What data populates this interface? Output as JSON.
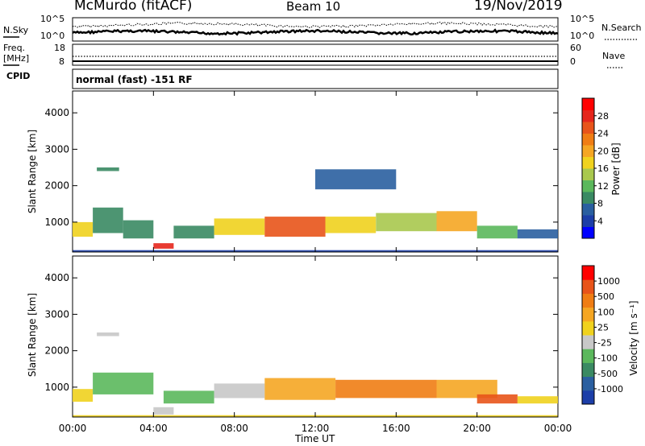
{
  "header": {
    "station": "McMurdo (fitACF)",
    "beam": "Beam 10",
    "date": "19/Nov/2019"
  },
  "noise_panel": {
    "left_label": "N.Sky",
    "right_label": "N.Search",
    "left_ticks": [
      "10^5",
      "10^0"
    ],
    "right_ticks": [
      "10^5",
      "10^0"
    ]
  },
  "freq_panel": {
    "left_label_line1": "Freq.",
    "left_label_line2": "[MHz]",
    "right_label": "Nave",
    "left_ticks": [
      "18",
      "8"
    ],
    "right_ticks": [
      "60",
      "0"
    ]
  },
  "cpid": {
    "label": "CPID",
    "mode": "normal (fast) -151 RF"
  },
  "chart_data": [
    {
      "type": "heatmap",
      "panel": "power",
      "ylabel": "Slant Range [km]",
      "xlabel": "",
      "x_ticks": [
        "00:00",
        "04:00",
        "08:00",
        "12:00",
        "16:00",
        "20:00",
        "00:00"
      ],
      "y_ticks": [
        "1000",
        "2000",
        "3000",
        "4000"
      ],
      "ylim": [
        180,
        4600
      ],
      "xlim_hours": [
        0,
        24
      ],
      "colorbar": {
        "label": "Power [dB]",
        "ticks": [
          "4",
          "8",
          "12",
          "16",
          "20",
          "24",
          "28"
        ],
        "range": [
          0,
          32
        ],
        "colors": [
          "#0000ff",
          "#1c3ea8",
          "#2a5fa0",
          "#3a8a63",
          "#5bb85c",
          "#a9c84e",
          "#f0d21e",
          "#f5a623",
          "#f07d14",
          "#e8541a",
          "#e5261c",
          "#ff0000"
        ]
      },
      "bands": [
        {
          "t0": 0.0,
          "t1": 1.0,
          "r0": 600,
          "r1": 1000,
          "v": 18
        },
        {
          "t0": 1.0,
          "t1": 2.5,
          "r0": 700,
          "r1": 1400,
          "v": 10
        },
        {
          "t0": 2.5,
          "t1": 4.0,
          "r0": 550,
          "r1": 1050,
          "v": 9
        },
        {
          "t0": 4.0,
          "t1": 5.0,
          "r0": 270,
          "r1": 420,
          "v": 27
        },
        {
          "t0": 5.0,
          "t1": 7.0,
          "r0": 550,
          "r1": 900,
          "v": 9
        },
        {
          "t0": 7.0,
          "t1": 9.5,
          "r0": 650,
          "r1": 1100,
          "v": 18
        },
        {
          "t0": 9.5,
          "t1": 12.5,
          "r0": 600,
          "r1": 1150,
          "v": 25
        },
        {
          "t0": 12.5,
          "t1": 15.0,
          "r0": 700,
          "r1": 1150,
          "v": 17
        },
        {
          "t0": 15.0,
          "t1": 18.0,
          "r0": 750,
          "r1": 1250,
          "v": 15
        },
        {
          "t0": 18.0,
          "t1": 20.0,
          "r0": 750,
          "r1": 1300,
          "v": 19
        },
        {
          "t0": 20.0,
          "t1": 22.0,
          "r0": 550,
          "r1": 900,
          "v": 12
        },
        {
          "t0": 22.0,
          "t1": 24.0,
          "r0": 550,
          "r1": 800,
          "v": 7
        },
        {
          "t0": 1.2,
          "t1": 2.3,
          "r0": 2400,
          "r1": 2500,
          "v": 8
        },
        {
          "t0": 12.0,
          "t1": 16.0,
          "r0": 1900,
          "r1": 2450,
          "v": 6
        },
        {
          "t0": 0.0,
          "t1": 24.0,
          "r0": 190,
          "r1": 230,
          "v": 4
        }
      ]
    },
    {
      "type": "heatmap",
      "panel": "velocity",
      "ylabel": "Slant Range [km]",
      "xlabel": "Time UT",
      "x_ticks": [
        "00:00",
        "04:00",
        "08:00",
        "12:00",
        "16:00",
        "20:00",
        "00:00"
      ],
      "y_ticks": [
        "1000",
        "2000",
        "3000",
        "4000"
      ],
      "ylim": [
        180,
        4600
      ],
      "xlim_hours": [
        0,
        24
      ],
      "colorbar": {
        "label": "Velocity [m s⁻¹]",
        "ticks": [
          "1000",
          "500",
          "100",
          "25",
          "-25",
          "-100",
          "-500",
          "-1000"
        ],
        "colors": [
          "#1c3ea8",
          "#2a5fa0",
          "#3a8a63",
          "#5bb85c",
          "#c8c8c8",
          "#f0d21e",
          "#f5a623",
          "#f07d14",
          "#e8541a",
          "#ff0000"
        ]
      },
      "bands": [
        {
          "t0": 0.0,
          "t1": 1.0,
          "r0": 600,
          "r1": 950,
          "v": 5
        },
        {
          "t0": 1.0,
          "t1": 4.0,
          "r0": 800,
          "r1": 1400,
          "v": 3
        },
        {
          "t0": 4.0,
          "t1": 5.0,
          "r0": 250,
          "r1": 450,
          "v": 4
        },
        {
          "t0": 4.5,
          "t1": 7.0,
          "r0": 550,
          "r1": 900,
          "v": 3
        },
        {
          "t0": 7.0,
          "t1": 9.5,
          "r0": 700,
          "r1": 1100,
          "v": 4
        },
        {
          "t0": 9.5,
          "t1": 13.0,
          "r0": 650,
          "r1": 1250,
          "v": 6
        },
        {
          "t0": 13.0,
          "t1": 18.0,
          "r0": 700,
          "r1": 1200,
          "v": 7
        },
        {
          "t0": 18.0,
          "t1": 21.0,
          "r0": 700,
          "r1": 1200,
          "v": 6
        },
        {
          "t0": 20.0,
          "t1": 22.0,
          "r0": 550,
          "r1": 800,
          "v": 8
        },
        {
          "t0": 22.0,
          "t1": 24.0,
          "r0": 550,
          "r1": 750,
          "v": 5
        },
        {
          "t0": 1.2,
          "t1": 2.3,
          "r0": 2400,
          "r1": 2500,
          "v": 4
        },
        {
          "t0": 0.0,
          "t1": 24.0,
          "r0": 190,
          "r1": 230,
          "v": 5
        }
      ]
    }
  ]
}
